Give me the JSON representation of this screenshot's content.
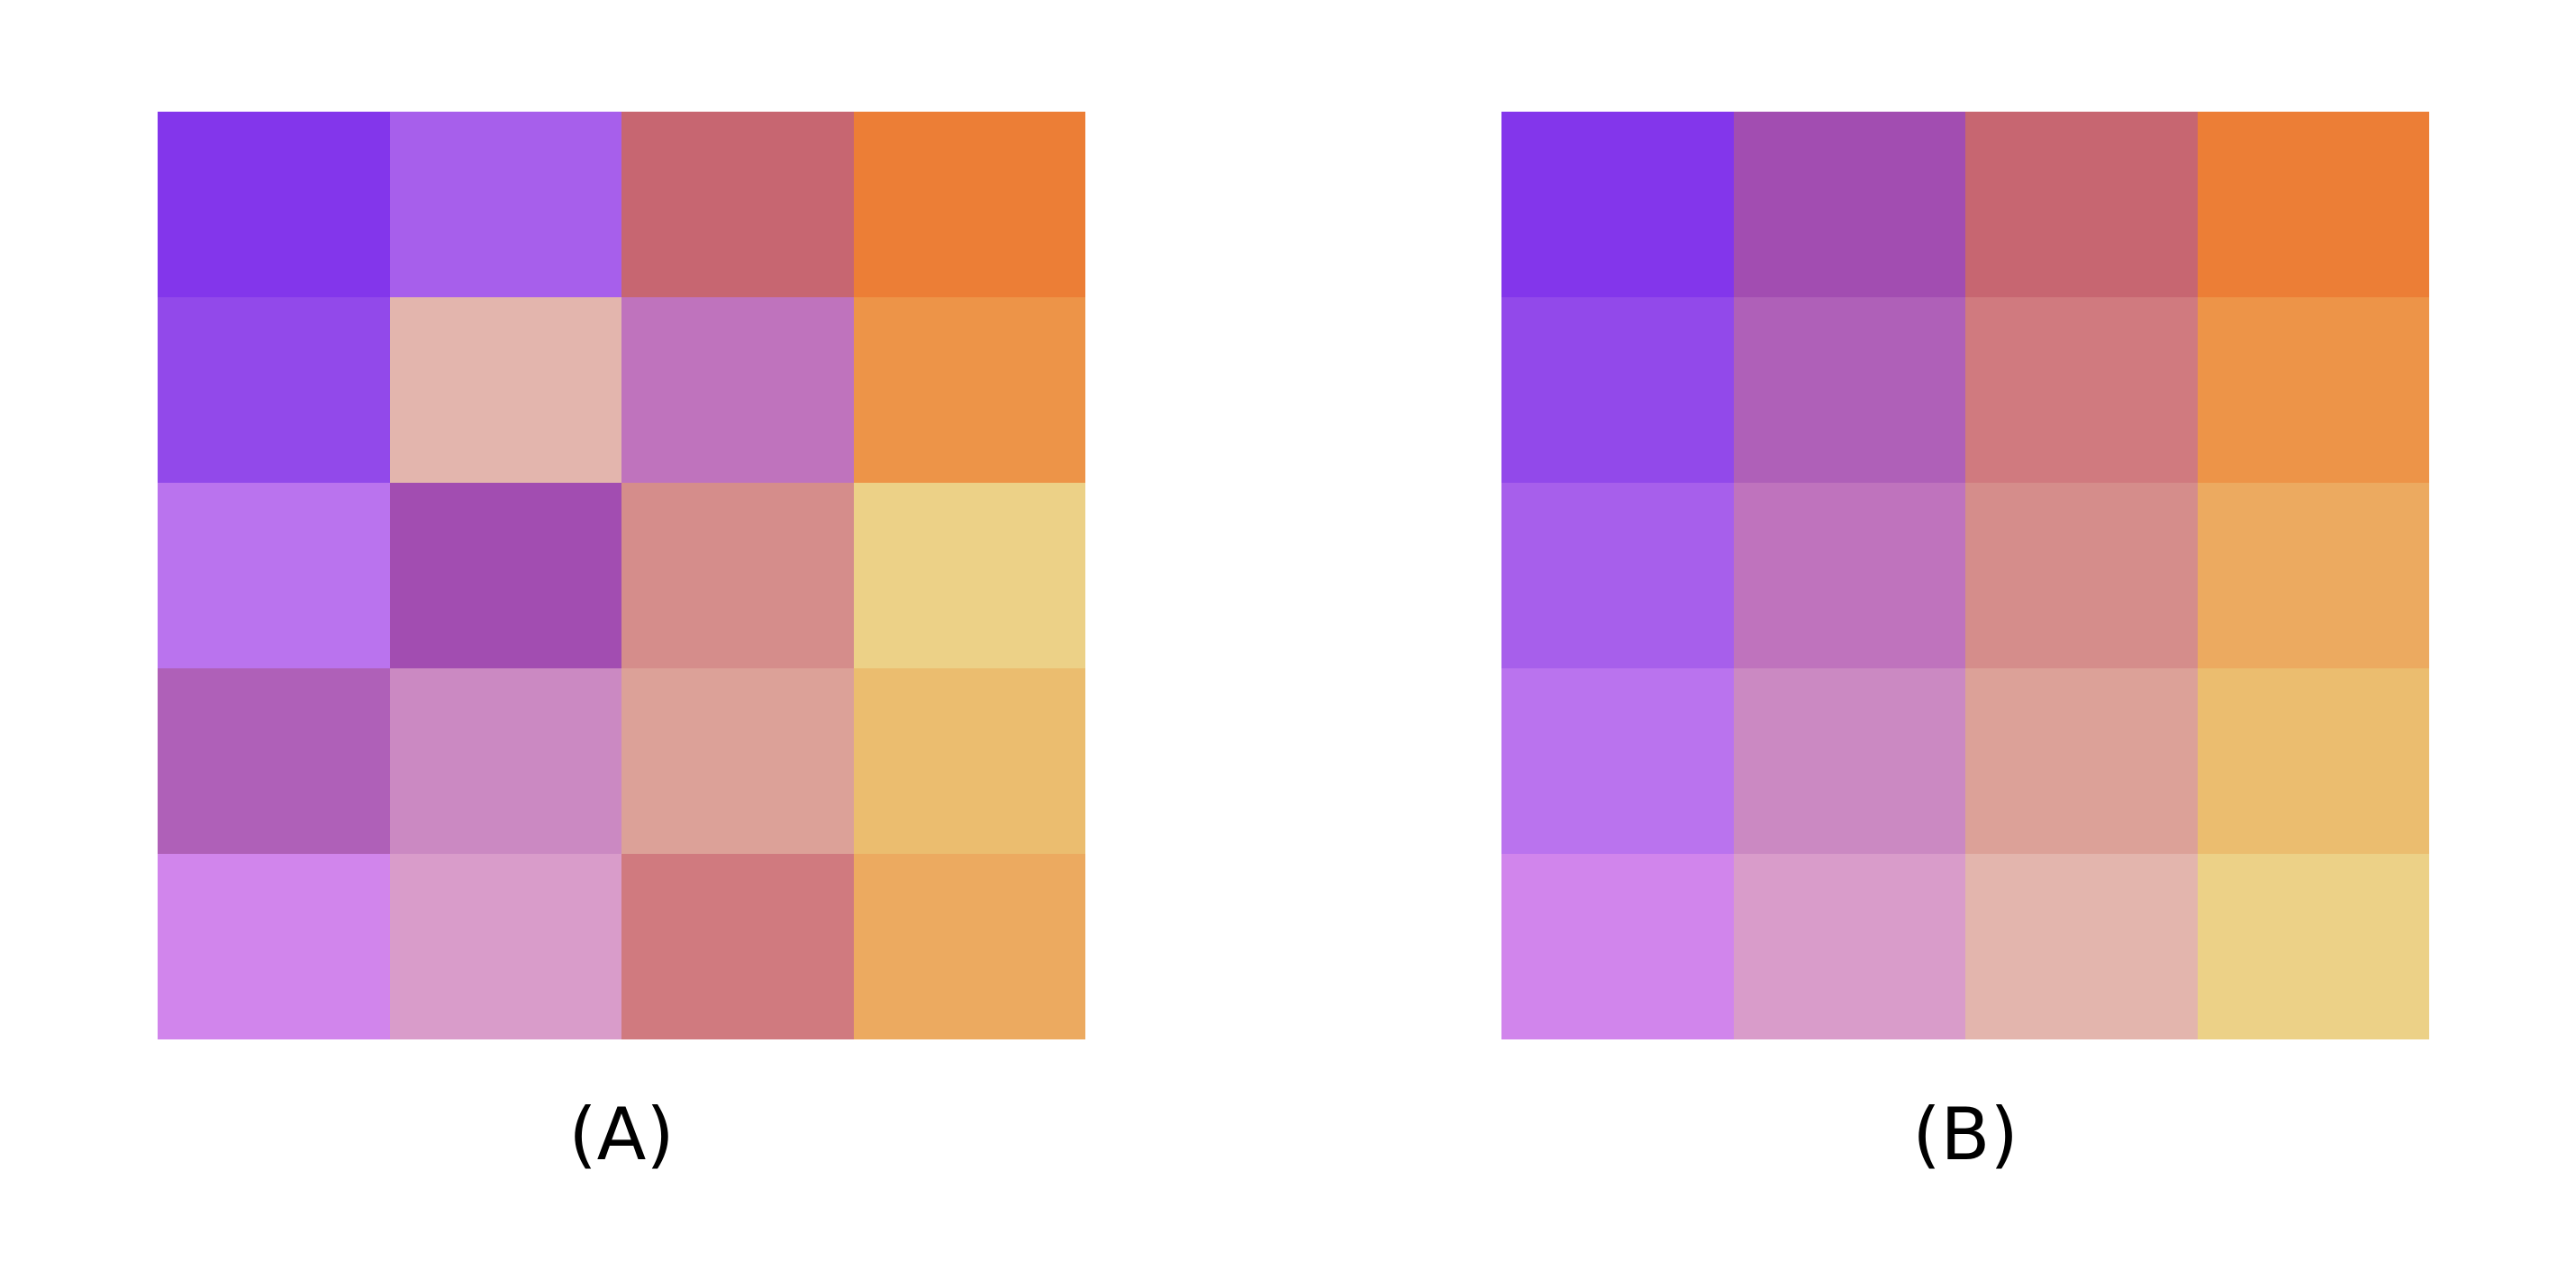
{
  "puzzles": [
    {
      "id": "A",
      "label": "(A)",
      "rows": 5,
      "cols": 4,
      "tiles": [
        [
          "#8336EB",
          "#A75FEB",
          "#C76671",
          "#EC7E36"
        ],
        [
          "#9249EA",
          "#E3B5AD",
          "#BF73BD",
          "#ED9448"
        ],
        [
          "#BA73EE",
          "#A24DB1",
          "#D58D8B",
          "#ECD187"
        ],
        [
          "#AF60B8",
          "#CB89C2",
          "#DCA198",
          "#EBBD6F"
        ],
        [
          "#D185EC",
          "#D99CCA",
          "#D07A7F",
          "#ECAA60"
        ]
      ]
    },
    {
      "id": "B",
      "label": "(B)",
      "rows": 5,
      "cols": 4,
      "tiles": [
        [
          "#8336EB",
          "#A24DB1",
          "#C76671",
          "#EC7E36"
        ],
        [
          "#9249EA",
          "#AF60B8",
          "#D07A7F",
          "#ED9448"
        ],
        [
          "#A75FEB",
          "#BF73BD",
          "#D58D8B",
          "#ECAA60"
        ],
        [
          "#BA73EE",
          "#CB89C2",
          "#DCA198",
          "#EBBD6F"
        ],
        [
          "#D185EC",
          "#D99CCA",
          "#E3B5AD",
          "#ECD187"
        ]
      ]
    }
  ]
}
